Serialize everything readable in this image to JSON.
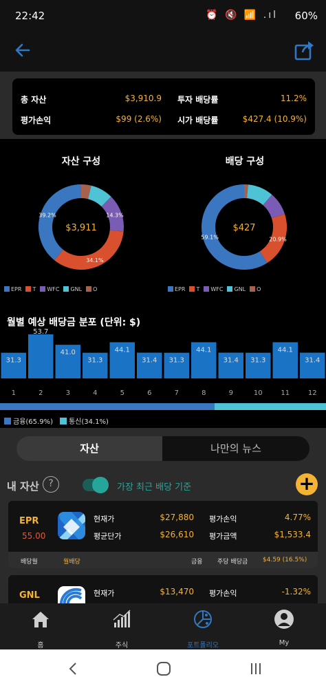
{
  "status_bar": {
    "time": "22:42",
    "icons": "⏰ 🔇 📶 .ıl",
    "battery": "60%"
  },
  "summary": {
    "total_assets_label": "총 자산",
    "total_assets_value": "$3,910.9",
    "pnl_label": "평가손익",
    "pnl_value": "$99 (2.6%)",
    "invest_yield_label": "투자 배당률",
    "invest_yield_value": "11.2%",
    "market_yield_label": "시가 배당률",
    "market_yield_value": "$427.4 (10.9%)"
  },
  "asset_chart": {
    "title": "자산 구성",
    "center": "$3,911",
    "slice_labels": [
      "39.2%",
      "34.1%",
      "14.3%"
    ]
  },
  "dividend_chart": {
    "title": "배당 구성",
    "center": "$427",
    "slice_labels": [
      "59.1%",
      "20.9%"
    ]
  },
  "legend": [
    {
      "name": "EPR",
      "color": "#3b77c0"
    },
    {
      "name": "T",
      "color": "#d8502e"
    },
    {
      "name": "WFC",
      "color": "#7b5cb4"
    },
    {
      "name": "GNL",
      "color": "#4fc3d6"
    },
    {
      "name": "O",
      "color": "#a6624e"
    }
  ],
  "monthly": {
    "title": "월별 예상 배당금 분포 (단위: $)"
  },
  "chart_data": [
    {
      "type": "pie",
      "title": "자산 구성",
      "categories": [
        "EPR",
        "T",
        "WFC",
        "GNL",
        "O"
      ],
      "values": [
        39.2,
        34.1,
        14.3,
        8.6,
        3.8
      ],
      "labels_shown": [
        "39.2%",
        "34.1%",
        "14.3%"
      ]
    },
    {
      "type": "pie",
      "title": "배당 구성",
      "categories": [
        "EPR",
        "T",
        "WFC",
        "GNL",
        "O"
      ],
      "values": [
        59.1,
        20.9,
        8.7,
        9.8,
        1.5
      ],
      "labels_shown": [
        "59.1%",
        "20.9%"
      ]
    },
    {
      "type": "bar",
      "title": "월별 예상 배당금 분포 (단위: $)",
      "categories": [
        "1",
        "2",
        "3",
        "4",
        "5",
        "6",
        "7",
        "8",
        "9",
        "10",
        "11",
        "12"
      ],
      "values": [
        31.3,
        53.7,
        41.0,
        31.3,
        44.1,
        31.4,
        31.3,
        44.1,
        31.4,
        31.3,
        44.1,
        31.4
      ],
      "value_labels": [
        "31.3",
        "53.7",
        "41.0",
        "31.3",
        "44.1",
        "31.4",
        "31.3",
        "44.1",
        "31.4",
        "31.3",
        "44.1",
        "31.4"
      ],
      "ylim": [
        0,
        60
      ],
      "color": "#1a73c4"
    },
    {
      "type": "bar",
      "title": "",
      "categories": [
        "금융",
        "통신"
      ],
      "values": [
        65.9,
        34.1
      ],
      "colors": [
        "#3b77c0",
        "#4fc3d6"
      ]
    }
  ],
  "sector_legend": [
    {
      "label": "금융(65.9%)",
      "color": "#3b77c0"
    },
    {
      "label": "통신(34.1%)",
      "color": "#4fc3d6"
    }
  ],
  "tabs": [
    {
      "label": "자산"
    },
    {
      "label": "나만의 뉴스"
    }
  ],
  "my_assets": {
    "label": "내 자산",
    "help": "?",
    "toggle_label": "가장 최근 배당 기준",
    "add": "+"
  },
  "cards": [
    {
      "ticker": "EPR",
      "price": "55.00",
      "current_label": "현재가",
      "current_value": "$27,880",
      "avg_label": "평균단가",
      "avg_value": "$26,610",
      "pnl_label": "평가손익",
      "pnl_value": "4.77%",
      "eval_label": "평가금액",
      "eval_value": "$1,533.4",
      "foot_month_label": "배당월",
      "foot_month_value": "월배당",
      "foot_sector": "금융",
      "foot_yield_label": "주당 배당금",
      "foot_yield_value": "$4.59 (16.5%)"
    },
    {
      "ticker": "GNL",
      "current_label": "현재가",
      "current_value": "$13,470",
      "pnl_label": "평가손익",
      "pnl_value": "-1.32%"
    }
  ],
  "bottom_nav": [
    {
      "label": "홈",
      "icon": "home-icon"
    },
    {
      "label": "주식",
      "icon": "bar-chart-icon"
    },
    {
      "label": "포트폴리오",
      "icon": "portfolio-icon"
    },
    {
      "label": "My",
      "icon": "user-icon"
    }
  ]
}
